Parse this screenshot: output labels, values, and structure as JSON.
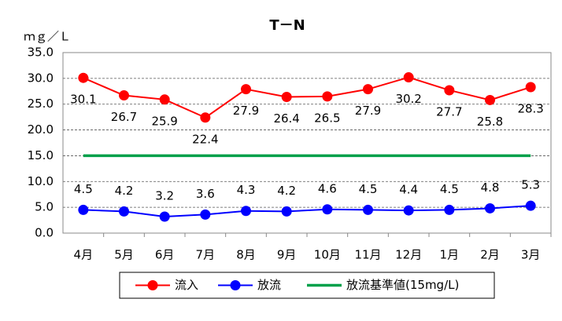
{
  "chart_data": {
    "type": "line",
    "title": "T－N",
    "y_label": "ｍｇ／Ｌ",
    "categories": [
      "4月",
      "5月",
      "6月",
      "7月",
      "8月",
      "9月",
      "10月",
      "11月",
      "12月",
      "1月",
      "2月",
      "3月"
    ],
    "series": [
      {
        "name": "流入",
        "color": "#ff0000",
        "marker": true,
        "data_labels": "below",
        "values": [
          30.1,
          26.7,
          25.9,
          22.4,
          27.9,
          26.4,
          26.5,
          27.9,
          30.2,
          27.7,
          25.8,
          28.3
        ]
      },
      {
        "name": "放流",
        "color": "#0000ff",
        "marker": true,
        "data_labels": "above",
        "values": [
          4.5,
          4.2,
          3.2,
          3.6,
          4.3,
          4.2,
          4.6,
          4.5,
          4.4,
          4.5,
          4.8,
          5.3
        ]
      },
      {
        "name": "放流基準値(15mg/L)",
        "color": "#00a04a",
        "marker": false,
        "data_labels": "none",
        "values": [
          15,
          15,
          15,
          15,
          15,
          15,
          15,
          15,
          15,
          15,
          15,
          15
        ]
      }
    ],
    "ylim": [
      0,
      35
    ],
    "yticks": [
      {
        "value": 0,
        "label": "0.0"
      },
      {
        "value": 5,
        "label": "5.0"
      },
      {
        "value": 10,
        "label": "10.0"
      },
      {
        "value": 15,
        "label": "15.0"
      },
      {
        "value": 20,
        "label": "20.0"
      },
      {
        "value": 25,
        "label": "25.0"
      },
      {
        "value": 30,
        "label": "30.0"
      },
      {
        "value": 35,
        "label": "35.0"
      }
    ],
    "grid": true,
    "legend": "bottom"
  }
}
